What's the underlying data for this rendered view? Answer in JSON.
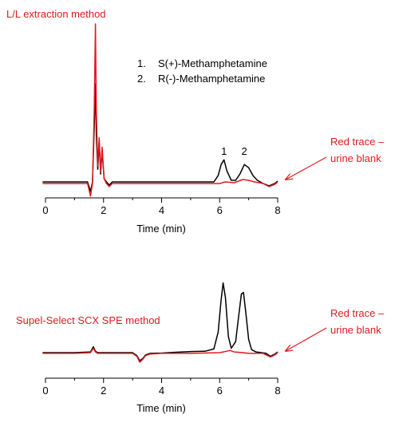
{
  "colors": {
    "sample": "#000000",
    "blank": "#e0191f"
  },
  "legend": {
    "items": [
      {
        "number": "1.",
        "label": "S(+)-Methamphetamine"
      },
      {
        "number": "2.",
        "label": "R(-)-Methamphetamine"
      }
    ]
  },
  "chart_data": [
    {
      "type": "line",
      "title": "L/L extraction method",
      "xlabel": "Time (min)",
      "ylabel": "",
      "xlim": [
        0,
        8
      ],
      "ylim": [
        -0.15,
        1.0
      ],
      "xticks": [
        "0",
        "2",
        "4",
        "6",
        "8"
      ],
      "peak_labels": [
        {
          "text": "1",
          "x": 6.15
        },
        {
          "text": "2",
          "x": 6.85
        }
      ],
      "annotation": {
        "line1": "Red trace –",
        "line2": "urine blank"
      },
      "series": [
        {
          "color": "#000000",
          "x": [
            -0.1,
            1.0,
            1.45,
            1.55,
            1.62,
            1.68,
            1.72,
            1.75,
            1.8,
            1.85,
            1.9,
            1.95,
            2.02,
            2.1,
            2.2,
            2.3,
            2.5,
            3.0,
            4.0,
            5.0,
            5.8,
            5.95,
            6.05,
            6.15,
            6.25,
            6.4,
            6.55,
            6.7,
            6.85,
            7.0,
            7.15,
            7.3,
            7.5,
            7.7,
            7.9,
            8.0
          ],
          "y": [
            0,
            0,
            0,
            -0.06,
            0,
            0.35,
            0.62,
            0.3,
            0.08,
            0.25,
            0.05,
            0.2,
            0.02,
            0,
            -0.02,
            0,
            0,
            0,
            0,
            0,
            0,
            0.04,
            0.11,
            0.14,
            0.07,
            0.01,
            0.01,
            0.05,
            0.11,
            0.09,
            0.04,
            0.01,
            -0.01,
            -0.025,
            -0.01,
            0.005
          ]
        },
        {
          "color": "#e0191f",
          "x": [
            -0.1,
            1.0,
            1.45,
            1.55,
            1.62,
            1.68,
            1.72,
            1.75,
            1.8,
            1.85,
            1.9,
            1.95,
            2.02,
            2.1,
            2.2,
            2.3,
            2.5,
            3.0,
            4.0,
            5.0,
            6.0,
            6.2,
            6.5,
            6.8,
            7.0,
            7.2,
            7.5,
            7.7,
            7.9,
            8.0
          ],
          "y": [
            -0.01,
            -0.01,
            -0.01,
            -0.09,
            -0.01,
            0.45,
            1.0,
            0.45,
            0.1,
            0.28,
            0.06,
            0.22,
            0.02,
            -0.01,
            -0.03,
            -0.01,
            -0.01,
            -0.01,
            -0.01,
            -0.01,
            -0.01,
            0,
            -0.005,
            0.015,
            0.01,
            0,
            -0.01,
            -0.03,
            -0.015,
            0
          ]
        }
      ]
    },
    {
      "type": "line",
      "title": "Supel-Select SCX SPE method",
      "xlabel": "Time (min)",
      "ylabel": "",
      "xlim": [
        0,
        8
      ],
      "ylim": [
        -0.15,
        1.0
      ],
      "xticks": [
        "0",
        "2",
        "4",
        "6",
        "8"
      ],
      "annotation": {
        "line1": "Red trace –",
        "line2": "urine blank"
      },
      "series": [
        {
          "color": "#000000",
          "x": [
            -0.1,
            1.0,
            1.55,
            1.65,
            1.72,
            1.8,
            2.0,
            2.5,
            3.0,
            3.15,
            3.25,
            3.35,
            3.45,
            3.6,
            4.0,
            4.5,
            5.0,
            5.5,
            5.8,
            5.95,
            6.05,
            6.12,
            6.2,
            6.3,
            6.4,
            6.55,
            6.65,
            6.75,
            6.82,
            6.9,
            7.0,
            7.1,
            7.25,
            7.45,
            7.6,
            7.75,
            7.9,
            8.0
          ],
          "y": [
            0,
            0,
            0.01,
            0.08,
            0.02,
            0,
            0,
            0,
            0,
            -0.04,
            -0.11,
            -0.08,
            -0.03,
            -0.01,
            -0.005,
            0.005,
            0.015,
            0.02,
            0.05,
            0.28,
            0.72,
            0.95,
            0.75,
            0.22,
            0.06,
            0.15,
            0.48,
            0.8,
            0.82,
            0.55,
            0.18,
            0.04,
            0.01,
            0,
            -0.01,
            -0.05,
            -0.02,
            0.01
          ]
        },
        {
          "color": "#e0191f",
          "x": [
            -0.1,
            1.0,
            1.55,
            1.65,
            1.72,
            1.8,
            2.0,
            2.5,
            3.0,
            3.15,
            3.25,
            3.35,
            3.45,
            3.6,
            4.0,
            5.0,
            6.0,
            6.25,
            6.35,
            6.5,
            6.8,
            7.0,
            7.5,
            7.65,
            7.75,
            7.9,
            8.0
          ],
          "y": [
            -0.01,
            -0.01,
            0,
            0.06,
            0.01,
            -0.01,
            -0.01,
            -0.01,
            -0.01,
            -0.05,
            -0.13,
            -0.09,
            -0.04,
            -0.02,
            -0.01,
            -0.01,
            0,
            0.02,
            0.03,
            0.01,
            0,
            -0.01,
            -0.01,
            -0.04,
            -0.06,
            -0.03,
            0
          ]
        }
      ]
    }
  ]
}
